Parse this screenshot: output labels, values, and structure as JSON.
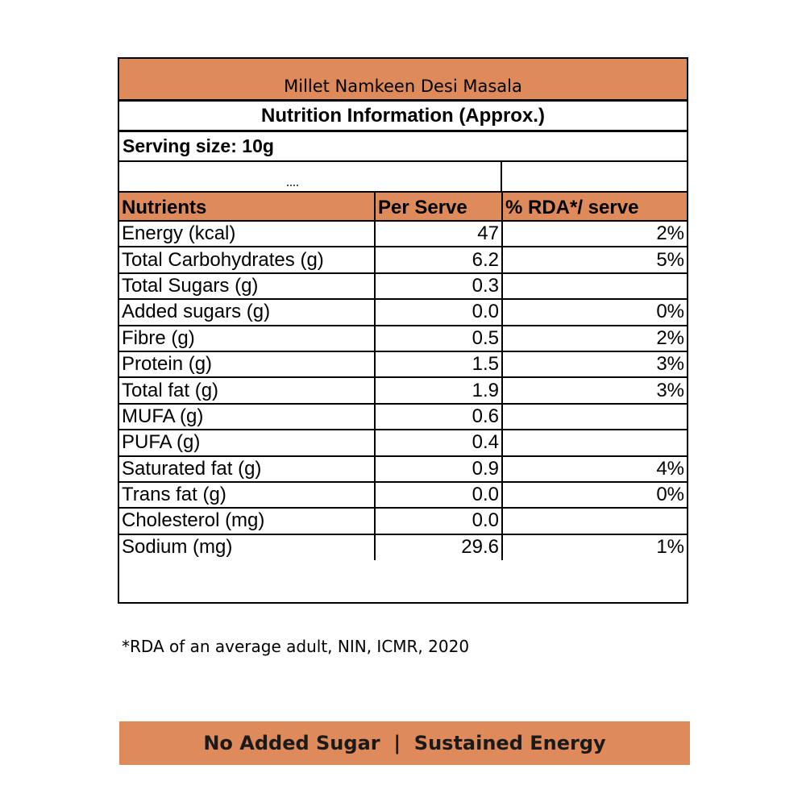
{
  "label": {
    "product_name": "Millet Namkeen Desi Masala",
    "heading": "Nutrition Information (Approx.)",
    "serving_size": "Serving size: 10g",
    "columns": [
      "Nutrients",
      "Per Serve",
      "% RDA*/ serve"
    ],
    "rows": [
      {
        "nutrient": "Energy (kcal)",
        "per_serve": "47",
        "rda": "2%"
      },
      {
        "nutrient": "Total Carbohydrates (g)",
        "per_serve": "6.2",
        "rda": "5%"
      },
      {
        "nutrient": "Total Sugars (g)",
        "per_serve": "0.3",
        "rda": ""
      },
      {
        "nutrient": "Added sugars (g)",
        "per_serve": "0.0",
        "rda": "0%"
      },
      {
        "nutrient": "Fibre (g)",
        "per_serve": "0.5",
        "rda": "2%"
      },
      {
        "nutrient": "Protein (g)",
        "per_serve": "1.5",
        "rda": "3%"
      },
      {
        "nutrient": "Total fat (g)",
        "per_serve": "1.9",
        "rda": "3%"
      },
      {
        "nutrient": "MUFA (g)",
        "per_serve": "0.6",
        "rda": ""
      },
      {
        "nutrient": "PUFA (g)",
        "per_serve": "0.4",
        "rda": ""
      },
      {
        "nutrient": "Saturated fat (g)",
        "per_serve": "0.9",
        "rda": "4%"
      },
      {
        "nutrient": "Trans fat (g)",
        "per_serve": "0.0",
        "rda": "0%"
      },
      {
        "nutrient": "Cholesterol (mg)",
        "per_serve": "0.0",
        "rda": ""
      },
      {
        "nutrient": "Sodium (mg)",
        "per_serve": "29.6",
        "rda": "1%"
      }
    ]
  },
  "footnote": "*RDA of an average adult, NIN, ICMR, 2020",
  "banner": "No Added Sugar  |  Sustained Energy",
  "colors": {
    "accent": "#df8a5b",
    "border": "#000000"
  }
}
